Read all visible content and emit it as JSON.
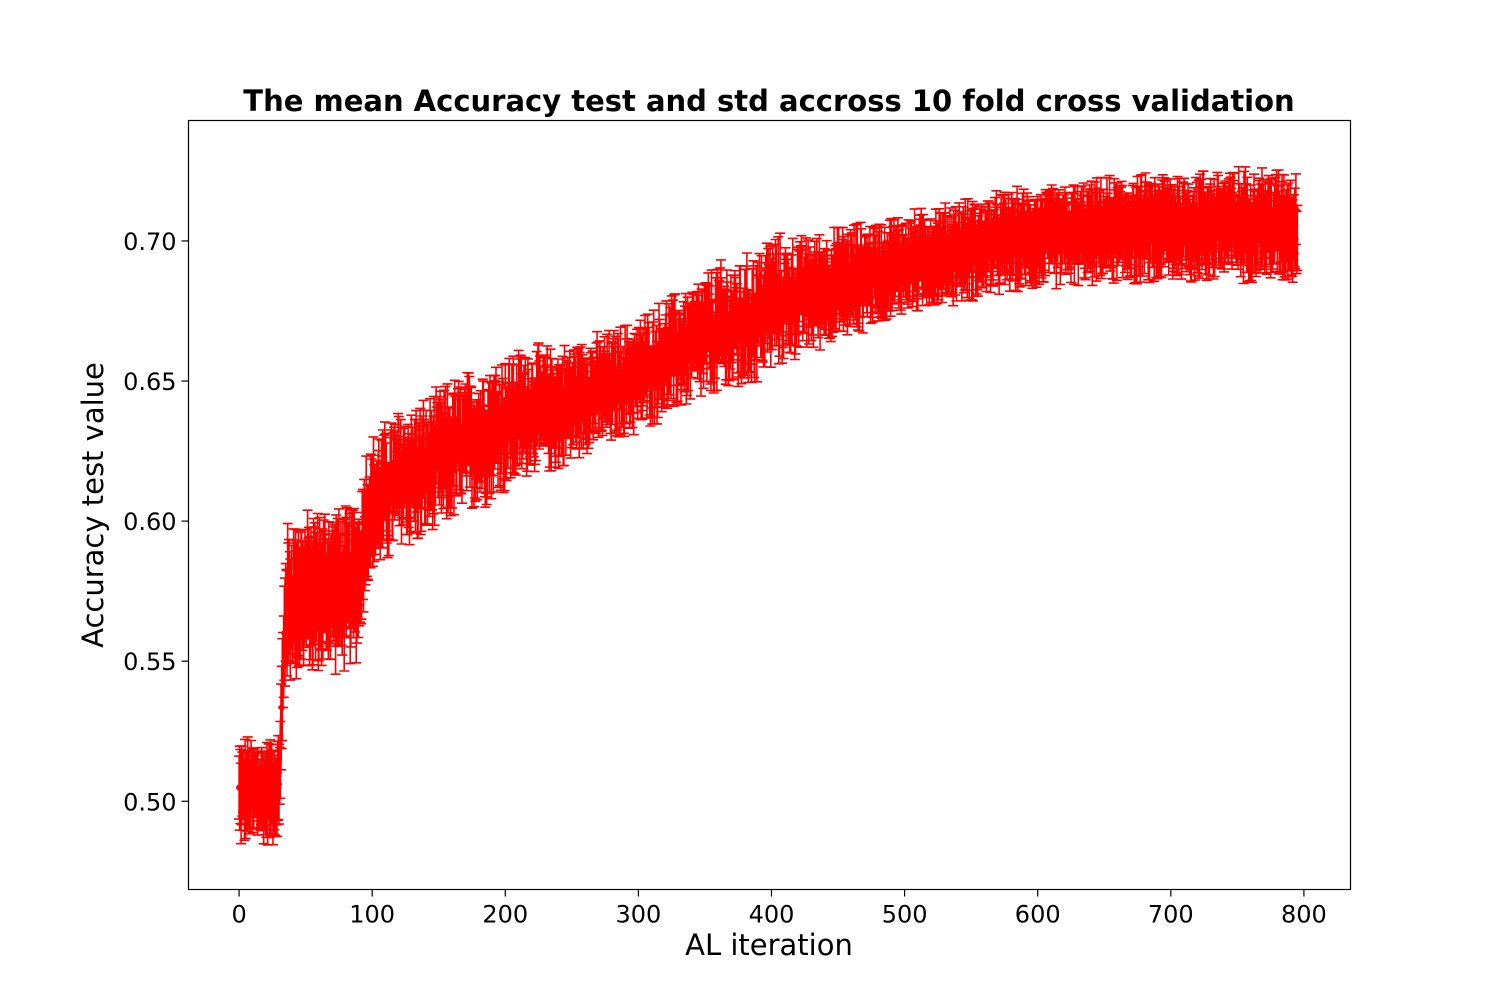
{
  "chart_data": {
    "type": "line",
    "title": "The mean Accuracy test and std accross 10 fold cross validation",
    "xlabel": "AL iteration",
    "ylabel": "Accuracy test value",
    "xlim": [
      -38,
      835
    ],
    "ylim": [
      0.4685,
      0.743
    ],
    "xticks": [
      0,
      100,
      200,
      300,
      400,
      500,
      600,
      700,
      800
    ],
    "xtick_labels": [
      "0",
      "100",
      "200",
      "300",
      "400",
      "500",
      "600",
      "700",
      "800"
    ],
    "yticks": [
      0.5,
      0.55,
      0.6,
      0.65,
      0.7
    ],
    "ytick_labels": [
      "0.50",
      "0.55",
      "0.60",
      "0.65",
      "0.70"
    ],
    "grid": false,
    "legend": "none",
    "series": [
      {
        "color": "#ff0000",
        "marker": "circle",
        "errorbars": true,
        "x": [
          0,
          10,
          20,
          30,
          35,
          40,
          50,
          60,
          70,
          80,
          90,
          95,
          100,
          120,
          140,
          160,
          180,
          200,
          220,
          240,
          260,
          280,
          300,
          320,
          340,
          360,
          380,
          400,
          420,
          440,
          460,
          480,
          500,
          520,
          540,
          560,
          580,
          600,
          620,
          640,
          660,
          680,
          700,
          720,
          740,
          760,
          780,
          795
        ],
        "y": [
          0.503,
          0.504,
          0.503,
          0.505,
          0.57,
          0.572,
          0.574,
          0.575,
          0.576,
          0.576,
          0.58,
          0.6,
          0.605,
          0.615,
          0.618,
          0.625,
          0.63,
          0.635,
          0.64,
          0.64,
          0.645,
          0.648,
          0.652,
          0.658,
          0.663,
          0.668,
          0.67,
          0.678,
          0.68,
          0.683,
          0.686,
          0.689,
          0.692,
          0.694,
          0.696,
          0.698,
          0.7,
          0.701,
          0.702,
          0.703,
          0.704,
          0.704,
          0.705,
          0.705,
          0.706,
          0.706,
          0.706,
          0.705
        ],
        "std": [
          0.012,
          0.012,
          0.012,
          0.012,
          0.018,
          0.018,
          0.018,
          0.018,
          0.018,
          0.018,
          0.018,
          0.015,
          0.014,
          0.014,
          0.014,
          0.014,
          0.014,
          0.014,
          0.013,
          0.013,
          0.012,
          0.012,
          0.012,
          0.012,
          0.012,
          0.013,
          0.013,
          0.013,
          0.012,
          0.012,
          0.012,
          0.011,
          0.011,
          0.011,
          0.011,
          0.011,
          0.011,
          0.011,
          0.011,
          0.011,
          0.012,
          0.012,
          0.012,
          0.012,
          0.012,
          0.012,
          0.012,
          0.012
        ],
        "noise": [
          0.006,
          0.006,
          0.006,
          0.006,
          0.009,
          0.009,
          0.009,
          0.009,
          0.009,
          0.009,
          0.009,
          0.01,
          0.01,
          0.01,
          0.01,
          0.01,
          0.01,
          0.01,
          0.008,
          0.008,
          0.007,
          0.007,
          0.007,
          0.008,
          0.008,
          0.01,
          0.01,
          0.01,
          0.008,
          0.007,
          0.007,
          0.006,
          0.006,
          0.006,
          0.006,
          0.006,
          0.006,
          0.006,
          0.006,
          0.006,
          0.006,
          0.006,
          0.007,
          0.007,
          0.007,
          0.007,
          0.007,
          0.007
        ]
      }
    ]
  }
}
